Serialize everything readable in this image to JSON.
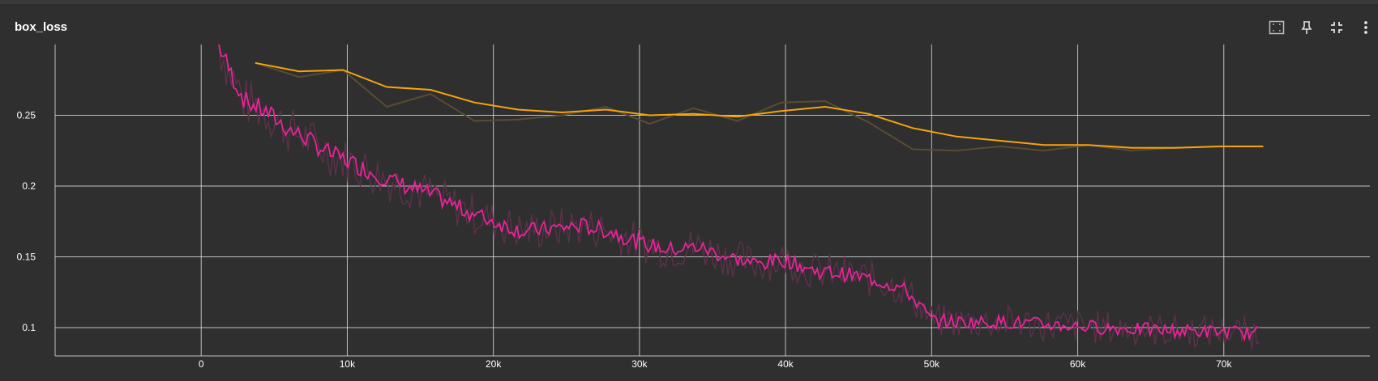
{
  "header": {
    "title": "box_loss",
    "icons": [
      "fit-domain-icon",
      "pin-icon",
      "fullscreen-exit-icon",
      "more-vert-icon"
    ]
  },
  "colors": {
    "background": "#2f2f2f",
    "grid": "#d9d9d9",
    "train_raw": "#5b3249",
    "train_smoothed": "#e8239a",
    "val_raw": "#5a4c33",
    "val_smoothed": "#f5a40c",
    "text": "#ffffff"
  },
  "chart_data": {
    "type": "line",
    "title": "box_loss",
    "xlabel": "",
    "ylabel": "",
    "xlim": [
      -10000,
      80000
    ],
    "ylim": [
      0.08,
      0.3
    ],
    "x_ticks": [
      0,
      10000,
      20000,
      30000,
      40000,
      50000,
      60000,
      70000
    ],
    "x_tick_labels": [
      "0",
      "10k",
      "20k",
      "30k",
      "40k",
      "50k",
      "60k",
      "70k"
    ],
    "y_ticks": [
      0.1,
      0.15,
      0.2,
      0.25
    ],
    "y_tick_labels": [
      "0.1",
      "0.15",
      "0.2",
      "0.25"
    ],
    "grid": true,
    "legend": "none",
    "series": [
      {
        "role": "train_smoothed",
        "x": [
          1200,
          2000,
          3000,
          4000,
          5000,
          6000,
          7000,
          8000,
          9000,
          10000,
          12000,
          14000,
          16000,
          18000,
          20000,
          22000,
          24000,
          26000,
          28000,
          30000,
          32000,
          34000,
          36000,
          38000,
          40000,
          42000,
          44000,
          46000,
          48000,
          49000,
          50000,
          52000,
          55000,
          58000,
          62000,
          66000,
          70000,
          72500
        ],
        "y": [
          0.3,
          0.28,
          0.26,
          0.255,
          0.248,
          0.24,
          0.235,
          0.228,
          0.222,
          0.218,
          0.208,
          0.2,
          0.193,
          0.183,
          0.175,
          0.168,
          0.17,
          0.172,
          0.168,
          0.16,
          0.155,
          0.157,
          0.15,
          0.145,
          0.148,
          0.14,
          0.138,
          0.134,
          0.128,
          0.118,
          0.105,
          0.104,
          0.104,
          0.102,
          0.1,
          0.098,
          0.097,
          0.096
        ]
      },
      {
        "role": "val_smoothed",
        "x": [
          3700,
          6700,
          9700,
          12700,
          15700,
          18700,
          21700,
          24700,
          27700,
          30700,
          33700,
          36700,
          39700,
          42700,
          45700,
          48700,
          51700,
          54700,
          57700,
          60700,
          63700,
          66700,
          69700,
          72700
        ],
        "y": [
          0.287,
          0.281,
          0.282,
          0.27,
          0.268,
          0.259,
          0.254,
          0.252,
          0.254,
          0.25,
          0.251,
          0.249,
          0.253,
          0.256,
          0.251,
          0.241,
          0.235,
          0.232,
          0.229,
          0.229,
          0.227,
          0.227,
          0.228,
          0.228
        ]
      },
      {
        "role": "val_raw",
        "x": [
          3700,
          6700,
          9700,
          12700,
          15700,
          18700,
          21700,
          24700,
          27700,
          30700,
          33700,
          36700,
          39700,
          42700,
          45700,
          48700,
          51700,
          54700,
          57700,
          60700,
          63700,
          66700,
          69700,
          72700
        ],
        "y": [
          0.287,
          0.277,
          0.282,
          0.256,
          0.265,
          0.246,
          0.247,
          0.25,
          0.256,
          0.244,
          0.255,
          0.246,
          0.259,
          0.26,
          0.245,
          0.226,
          0.225,
          0.228,
          0.225,
          0.229,
          0.225,
          0.227,
          0.228,
          0.228
        ]
      }
    ],
    "train_raw_noise_amplitude": 0.012
  }
}
